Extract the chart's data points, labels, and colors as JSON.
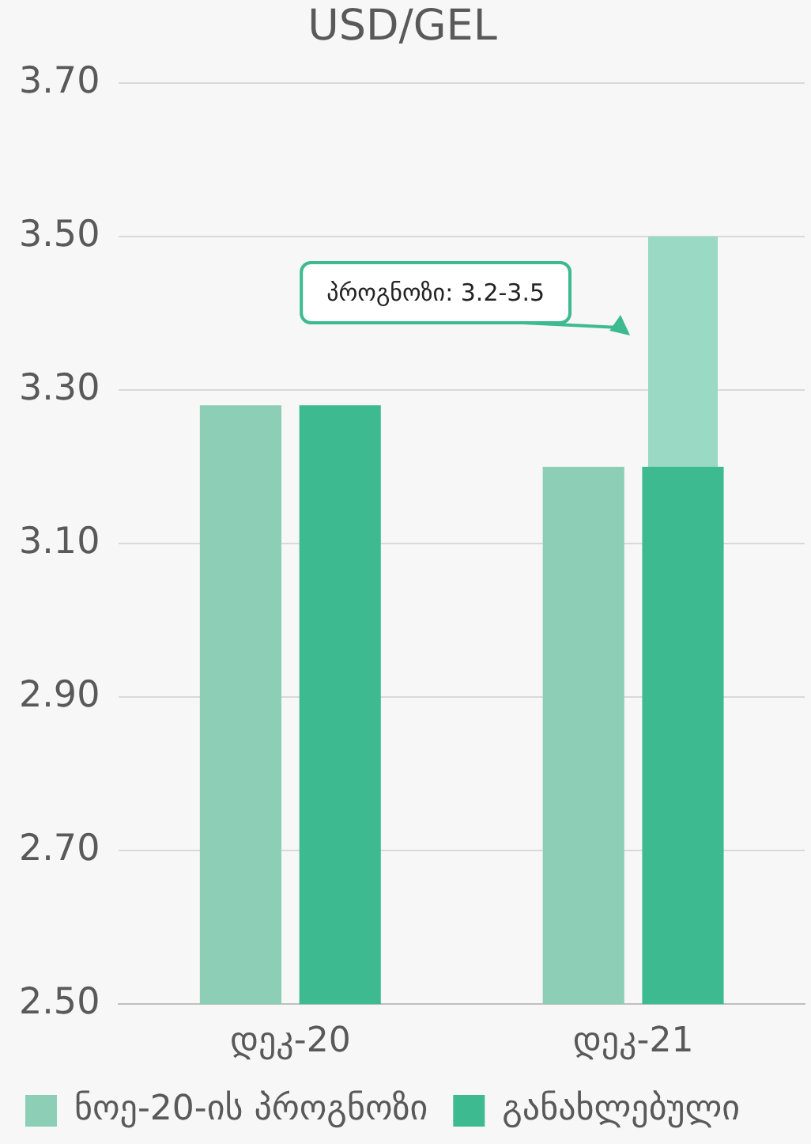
{
  "chart_data": {
    "type": "bar",
    "title": "USD/GEL",
    "categories": [
      "დეკ-20",
      "დეკ-21"
    ],
    "series": [
      {
        "name": "ნოე-20-ის პროგნოზი",
        "color": "#8ccfb6",
        "values": [
          3.28,
          3.2
        ]
      },
      {
        "name": "განახლებული",
        "color": "#3dba90",
        "values": [
          3.28,
          3.2
        ]
      },
      {
        "color": "#9ad9c4",
        "values": [
          null,
          0.3
        ],
        "base": [
          null,
          3.2
        ]
      }
    ],
    "ylim": [
      2.5,
      3.7
    ],
    "yticks": [
      {
        "value": 2.5,
        "label": "2.50"
      },
      {
        "value": 2.7,
        "label": "2.70"
      },
      {
        "value": 2.9,
        "label": "2.90"
      },
      {
        "value": 3.1,
        "label": "3.10"
      },
      {
        "value": 3.3,
        "label": "3.30"
      },
      {
        "value": 3.5,
        "label": "3.50"
      },
      {
        "value": 3.7,
        "label": "3.70"
      }
    ],
    "grid": "y",
    "legend": "bottom",
    "annotations": [
      "პროგნოზი: 3.2-3.5"
    ]
  }
}
